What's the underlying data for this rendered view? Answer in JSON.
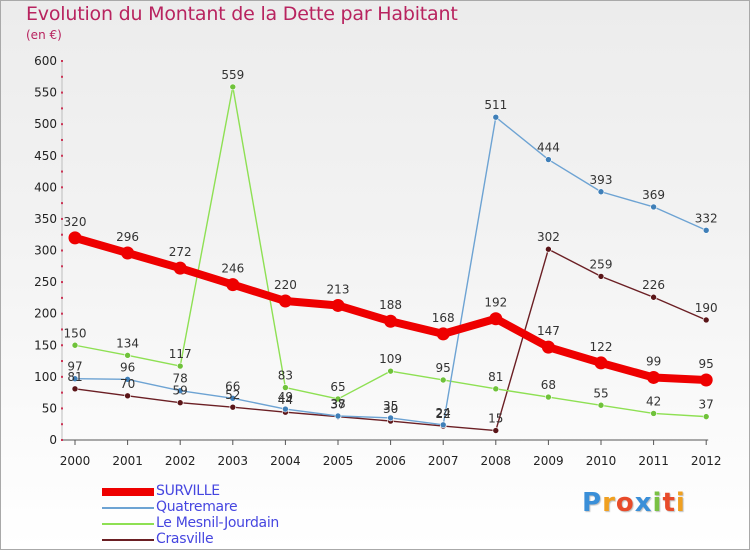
{
  "header": {
    "title": "Evolution du Montant de la Dette par Habitant",
    "subtitle": "(en €)"
  },
  "brand": {
    "text": "Proxiti"
  },
  "chart_data": {
    "type": "line",
    "title": "Evolution du Montant de la Dette par Habitant",
    "subtitle": "(en €)",
    "xlabel": "",
    "ylabel": "",
    "categories": [
      "2000",
      "2001",
      "2002",
      "2003",
      "2004",
      "2005",
      "2006",
      "2007",
      "2008",
      "2009",
      "2010",
      "2011",
      "2012"
    ],
    "ylim": [
      0,
      600
    ],
    "yticks": [
      0,
      50,
      100,
      150,
      200,
      250,
      300,
      350,
      400,
      450,
      500,
      550,
      600
    ],
    "grid": false,
    "legend_position": "bottom-left",
    "series": [
      {
        "name": "Crasville",
        "color": "#6b1f24",
        "values": [
          81,
          70,
          59,
          52,
          44,
          37,
          30,
          22,
          15,
          302,
          259,
          226,
          190
        ]
      },
      {
        "name": "Le Mesnil-Jourdain",
        "color": "#8ee053",
        "values": [
          150,
          134,
          117,
          559,
          83,
          65,
          109,
          95,
          81,
          68,
          55,
          42,
          37
        ]
      },
      {
        "name": "Quatremare",
        "color": "#6da3d3",
        "values": [
          97,
          96,
          78,
          66,
          49,
          38,
          35,
          24,
          511,
          444,
          393,
          369,
          332
        ]
      },
      {
        "name": "SURVILLE",
        "color": "#ee0000",
        "values": [
          320,
          296,
          272,
          246,
          220,
          213,
          188,
          168,
          192,
          147,
          122,
          99,
          95
        ]
      }
    ],
    "legend_order": [
      "SURVILLE",
      "Quatremare",
      "Le Mesnil-Jourdain",
      "Crasville"
    ]
  }
}
